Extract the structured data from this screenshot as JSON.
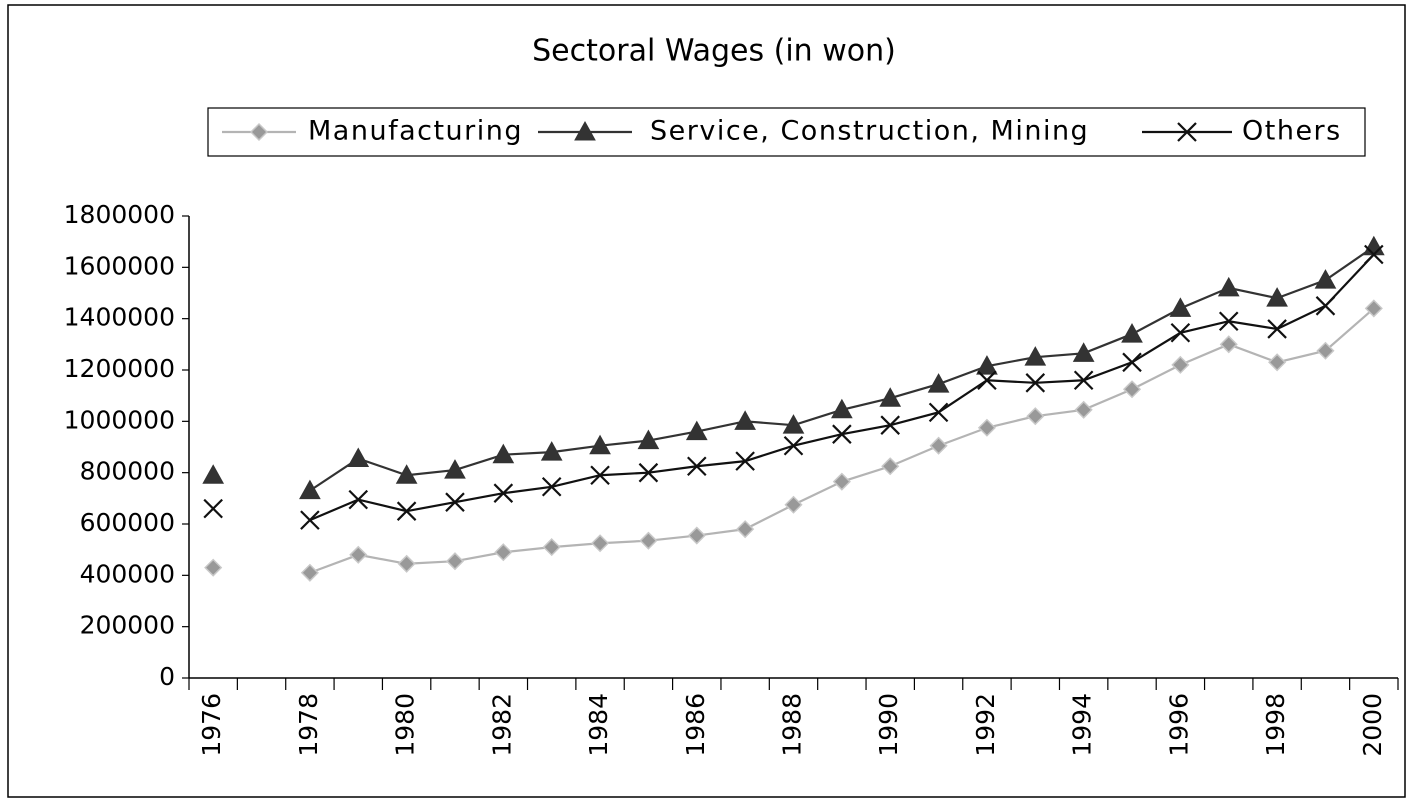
{
  "chart_data": {
    "type": "line",
    "title": "Sectoral Wages (in won)",
    "categories": [
      "1976",
      null,
      "1978",
      null,
      "1980",
      null,
      "1982",
      null,
      "1984",
      null,
      "1986",
      null,
      "1988",
      null,
      "1990",
      null,
      "1992",
      null,
      "1994",
      null,
      "1996",
      null,
      "1998",
      null,
      "2000"
    ],
    "series": [
      {
        "name": "Manufacturing",
        "color": "#b4b4b4",
        "marker": "diamond",
        "values": [
          430000,
          null,
          410000,
          480000,
          445000,
          455000,
          490000,
          510000,
          525000,
          535000,
          555000,
          580000,
          675000,
          765000,
          825000,
          905000,
          975000,
          1020000,
          1045000,
          1125000,
          1220000,
          1300000,
          1230000,
          1275000,
          1440000
        ]
      },
      {
        "name": "Service, Construction, Mining",
        "color": "#333333",
        "marker": "triangle",
        "values": [
          790000,
          null,
          730000,
          855000,
          790000,
          810000,
          870000,
          880000,
          905000,
          925000,
          960000,
          1000000,
          985000,
          1045000,
          1090000,
          1145000,
          1215000,
          1250000,
          1265000,
          1340000,
          1440000,
          1520000,
          1480000,
          1550000,
          1680000
        ]
      },
      {
        "name": "Others",
        "color": "#111111",
        "marker": "x",
        "values": [
          660000,
          null,
          615000,
          695000,
          650000,
          685000,
          720000,
          745000,
          790000,
          800000,
          825000,
          845000,
          905000,
          950000,
          985000,
          1035000,
          1160000,
          1150000,
          1160000,
          1230000,
          1345000,
          1390000,
          1360000,
          1450000,
          1650000
        ]
      }
    ],
    "ylim": [
      0,
      1800000
    ],
    "yticks": [
      0,
      200000,
      400000,
      600000,
      800000,
      1000000,
      1200000,
      1400000,
      1600000,
      1800000
    ],
    "grid": false,
    "legend": "top"
  }
}
